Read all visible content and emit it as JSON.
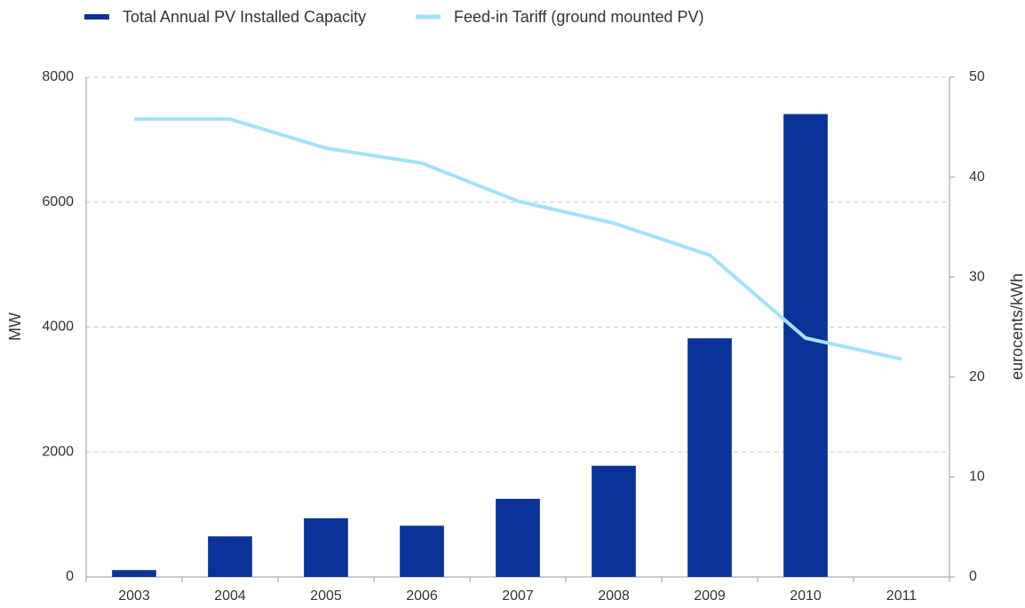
{
  "chart_data": {
    "type": "bar",
    "categories": [
      "2003",
      "2004",
      "2005",
      "2006",
      "2007",
      "2008",
      "2009",
      "2010",
      "2011"
    ],
    "series": [
      {
        "name": "Total Annual PV Installed Capacity",
        "color": "#0a3399",
        "type": "bar",
        "values": [
          110,
          650,
          940,
          820,
          1250,
          1780,
          3820,
          7410,
          null
        ]
      },
      {
        "name": "Feed-in Tariff (ground mounted PV)",
        "color": "#a3e2f7",
        "type": "line",
        "axis": "y2",
        "values": [
          45.8,
          45.8,
          42.9,
          41.4,
          37.6,
          35.4,
          32.2,
          23.9,
          21.8
        ]
      }
    ],
    "ylabel": "MW",
    "y2label": "eurocents/kWh",
    "ylim": [
      0,
      8000
    ],
    "yticks": [
      0,
      2000,
      4000,
      6000,
      8000
    ],
    "y2lim": [
      0,
      50
    ],
    "y2ticks": [
      0,
      10,
      20,
      30,
      40,
      50
    ],
    "grid": true,
    "legend": "top"
  }
}
